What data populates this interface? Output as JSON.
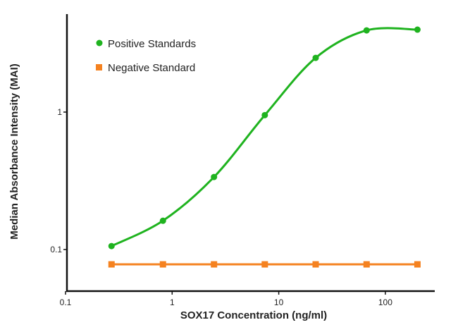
{
  "chart_data": {
    "type": "line",
    "title": "",
    "xlabel": "SOX17 Concentration (ng/ml)",
    "ylabel": "Median Absorbance Intensity (MAI)",
    "xscale": "log",
    "yscale": "log",
    "xlim": [
      0.1,
      280
    ],
    "ylim": [
      0.05,
      5.2
    ],
    "xticks": [
      {
        "v": 0.1,
        "label": "0.1"
      },
      {
        "v": 1,
        "label": "1"
      },
      {
        "v": 10,
        "label": "10"
      },
      {
        "v": 100,
        "label": "100"
      }
    ],
    "yticks": [
      {
        "v": 0.1,
        "label": "0.1"
      },
      {
        "v": 1,
        "label": "1"
      }
    ],
    "grid": false,
    "legend_position": "top-left",
    "x": [
      0.27,
      0.82,
      2.47,
      7.4,
      22.2,
      66.7,
      200
    ],
    "series": [
      {
        "name": "Positive Standards",
        "color": "#1fb31f",
        "marker": "circle",
        "values": [
          0.106,
          0.162,
          0.337,
          0.95,
          2.48,
          3.93,
          3.98
        ]
      },
      {
        "name": "Negative Standard",
        "color": "#f58220",
        "marker": "square",
        "values": [
          0.078,
          0.078,
          0.078,
          0.078,
          0.078,
          0.078,
          0.078
        ]
      }
    ]
  }
}
